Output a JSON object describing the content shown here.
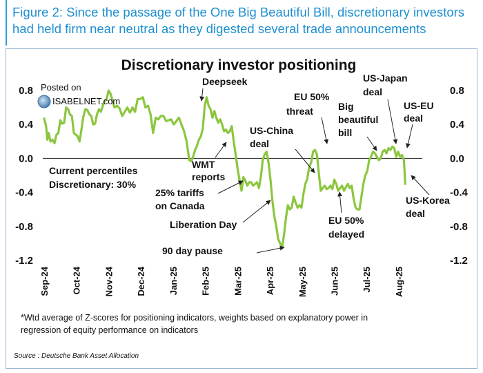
{
  "header": {
    "title_line1": "Figure 2: Since the passage of the One Big Beautiful Bill, discretionary investors",
    "title_line2": "had held firm near neutral as they digested several trade announcements"
  },
  "watermark": {
    "line1": "Posted on",
    "line2": "ISABELNET.com"
  },
  "footnote": {
    "line1": "*Wtd average of Z-scores for positioning indicators, weights based on explanatory power in",
    "line2": "regression of equity performance on indicators"
  },
  "source": "Source : Deutsche Bank Asset Allocation",
  "colors": {
    "line": "#8cc63f",
    "header": "#1e8fd0",
    "frame": "#9fb8d6"
  },
  "chart_data": {
    "type": "line",
    "title": "Discretionary investor positioning",
    "xlabel": "",
    "ylabel": "",
    "ylim": [
      -1.2,
      0.8
    ],
    "yticks": [
      "0.8",
      "0.4",
      "0.0",
      "-0.4",
      "-0.8",
      "-1.2"
    ],
    "ytick_values": [
      0.8,
      0.4,
      0.0,
      -0.4,
      -0.8,
      -1.2
    ],
    "xlim": [
      0,
      11.6
    ],
    "xticks": [
      "Sep-24",
      "Oct-24",
      "Nov-24",
      "Dec-24",
      "Jan-25",
      "Feb-25",
      "Mar-25",
      "Apr-25",
      "May-25",
      "Jun-25",
      "Jul-25",
      "Aug-25"
    ],
    "xtick_values": [
      0,
      1,
      2,
      3,
      4,
      5,
      6,
      7,
      8,
      9,
      10,
      11
    ],
    "series": [
      {
        "name": "Discretionary investor positioning",
        "x": [
          0.0,
          0.06,
          0.1,
          0.14,
          0.2,
          0.26,
          0.32,
          0.38,
          0.44,
          0.5,
          0.56,
          0.62,
          0.68,
          0.74,
          0.8,
          0.86,
          0.92,
          0.98,
          1.04,
          1.1,
          1.16,
          1.22,
          1.28,
          1.34,
          1.4,
          1.46,
          1.52,
          1.58,
          1.64,
          1.7,
          1.76,
          1.82,
          1.88,
          1.94,
          2.0,
          2.06,
          2.12,
          2.18,
          2.26,
          2.34,
          2.42,
          2.5,
          2.58,
          2.66,
          2.74,
          2.82,
          2.9,
          2.98,
          3.06,
          3.14,
          3.22,
          3.3,
          3.38,
          3.46,
          3.54,
          3.62,
          3.7,
          3.78,
          3.86,
          3.94,
          4.02,
          4.1,
          4.18,
          4.26,
          4.34,
          4.42,
          4.5,
          4.56,
          4.62,
          4.68,
          4.74,
          4.8,
          4.86,
          4.92,
          4.98,
          5.04,
          5.1,
          5.16,
          5.22,
          5.28,
          5.34,
          5.4,
          5.46,
          5.52,
          5.58,
          5.64,
          5.7,
          5.76,
          5.82,
          5.88,
          5.94,
          6.0,
          6.06,
          6.12,
          6.18,
          6.24,
          6.3,
          6.36,
          6.42,
          6.48,
          6.54,
          6.6,
          6.66,
          6.72,
          6.78,
          6.84,
          6.9,
          6.96,
          7.02,
          7.08,
          7.14,
          7.2,
          7.26,
          7.32,
          7.38,
          7.44,
          7.5,
          7.56,
          7.62,
          7.68,
          7.74,
          7.8,
          7.86,
          7.92,
          7.98,
          8.04,
          8.1,
          8.16,
          8.22,
          8.28,
          8.34,
          8.4,
          8.46,
          8.52,
          8.58,
          8.64,
          8.7,
          8.76,
          8.82,
          8.88,
          8.94,
          9.0,
          9.06,
          9.12,
          9.18,
          9.24,
          9.3,
          9.36,
          9.42,
          9.48,
          9.54,
          9.6,
          9.66,
          9.72,
          9.78,
          9.84,
          9.9,
          9.96,
          10.02,
          10.08,
          10.14,
          10.2,
          10.26,
          10.32,
          10.38,
          10.44,
          10.5,
          10.56,
          10.62,
          10.68,
          10.74,
          10.8,
          10.86,
          10.92,
          10.98,
          11.04,
          11.1,
          11.16,
          11.2
        ],
        "values": [
          0.47,
          0.38,
          0.22,
          0.3,
          0.2,
          0.22,
          0.18,
          0.28,
          0.3,
          0.45,
          0.41,
          0.42,
          0.6,
          0.58,
          0.52,
          0.5,
          0.3,
          0.28,
          0.26,
          0.2,
          0.35,
          0.5,
          0.58,
          0.57,
          0.52,
          0.5,
          0.4,
          0.41,
          0.52,
          0.58,
          0.55,
          0.62,
          0.68,
          0.7,
          0.8,
          0.76,
          0.68,
          0.6,
          0.62,
          0.59,
          0.5,
          0.55,
          0.6,
          0.54,
          0.6,
          0.55,
          0.7,
          0.7,
          0.72,
          0.6,
          0.62,
          0.52,
          0.3,
          0.48,
          0.46,
          0.5,
          0.5,
          0.44,
          0.45,
          0.46,
          0.4,
          0.44,
          0.48,
          0.4,
          0.32,
          0.2,
          -0.02,
          -0.03,
          0.02,
          0.1,
          0.15,
          0.22,
          0.26,
          0.35,
          0.62,
          0.72,
          0.62,
          0.58,
          0.48,
          0.56,
          0.48,
          0.42,
          0.46,
          0.4,
          0.32,
          0.34,
          0.3,
          0.32,
          0.38,
          0.2,
          0.05,
          -0.12,
          -0.25,
          -0.38,
          -0.22,
          -0.26,
          -0.32,
          -0.28,
          -0.28,
          -0.32,
          -0.3,
          -0.28,
          -0.35,
          -0.22,
          -0.02,
          0.05,
          0.08,
          -0.05,
          -0.25,
          -0.5,
          -0.68,
          -0.8,
          -0.95,
          -1.0,
          -1.05,
          -0.9,
          -0.7,
          -0.55,
          -0.6,
          -0.58,
          -0.45,
          -0.52,
          -0.58,
          -0.55,
          -0.58,
          -0.42,
          -0.3,
          -0.24,
          -0.1,
          -0.05,
          0.08,
          0.1,
          0.05,
          -0.18,
          -0.38,
          -0.35,
          -0.32,
          -0.36,
          -0.35,
          -0.32,
          -0.36,
          -0.25,
          -0.3,
          -0.38,
          -0.35,
          -0.32,
          -0.38,
          -0.34,
          -0.3,
          -0.35,
          -0.32,
          -0.48,
          -0.58,
          -0.6,
          -0.6,
          -0.45,
          -0.3,
          -0.2,
          -0.15,
          -0.02,
          0.02,
          0.08,
          0.06,
          0.02,
          -0.02,
          0.0,
          0.08,
          0.1,
          0.06,
          0.12,
          0.1,
          0.14,
          0.12,
          0.02,
          0.08,
          0.02,
          0.04,
          -0.02,
          -0.3
        ]
      }
    ],
    "legend_top": "Current percentiles",
    "legend_bottom": "Discretionary: 30%",
    "annotations": [
      {
        "text": "Deepseek"
      },
      {
        "text": "WMT",
        "text2": "reports"
      },
      {
        "text": "25% tariffs",
        "text2": "on Canada"
      },
      {
        "text": "Liberation Day"
      },
      {
        "text": "90 day pause"
      },
      {
        "text": "US-China",
        "text2": "deal"
      },
      {
        "text": "EU 50%",
        "text2": "threat"
      },
      {
        "text": "EU 50%",
        "text2": "delayed"
      },
      {
        "text": "Big",
        "text2": "beautiful",
        "text3": "bill"
      },
      {
        "text": "US-Japan",
        "text2": "deal"
      },
      {
        "text": "US-EU",
        "text2": "deal"
      },
      {
        "text": "US-Korea",
        "text2": "deal"
      }
    ]
  }
}
